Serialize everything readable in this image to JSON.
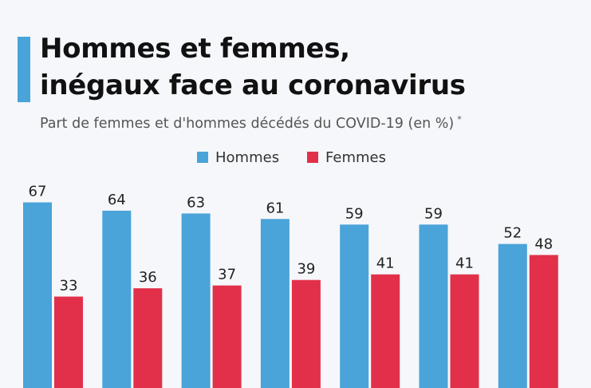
{
  "header": {
    "title_line1": "Hommes et femmes,",
    "title_line2": "inégaux face au coronavirus",
    "subtitle": "Part de femmes et d'hommes décédés du COVID-19 (en %)",
    "footnote_marker": "*",
    "accent_color": "#4aa3d9"
  },
  "legend": {
    "items": [
      {
        "label": "Hommes",
        "color": "#4aa3d9"
      },
      {
        "label": "Femmes",
        "color": "#e2304a"
      }
    ]
  },
  "chart_data": {
    "type": "bar",
    "title": "Hommes et femmes, inégaux face au coronavirus",
    "subtitle": "Part de femmes et d'hommes décédés du COVID-19 (en %)",
    "categories": [
      "",
      "",
      "",
      "",
      "",
      "",
      ""
    ],
    "series": [
      {
        "name": "Hommes",
        "color": "#4aa3d9",
        "values": [
          67,
          64,
          63,
          61,
          59,
          59,
          52
        ]
      },
      {
        "name": "Femmes",
        "color": "#e2304a",
        "values": [
          33,
          36,
          37,
          39,
          41,
          41,
          48
        ]
      }
    ],
    "ylim": [
      0,
      100
    ],
    "grid": false,
    "legend_position": "top-center",
    "data_labels": true
  }
}
